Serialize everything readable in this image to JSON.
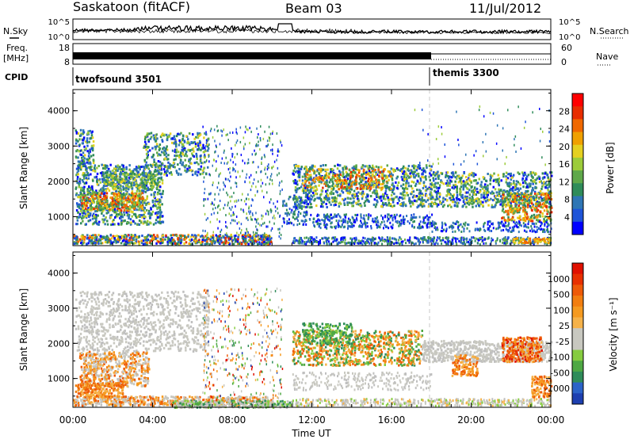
{
  "header": {
    "station": "Saskatoon (fitACF)",
    "beam": "Beam 03",
    "date": "11/Jul/2012"
  },
  "side_labels": {
    "nsky": "N.Sky",
    "freq_line1": "Freq.",
    "freq_line2": "[MHz]",
    "cpid": "CPID",
    "nsearch": "N.Search",
    "nave": "Nave"
  },
  "chart_data": [
    {
      "type": "line",
      "name": "noise-panel",
      "left_axis": {
        "label": "N.Sky",
        "ticks": [
          "10^5",
          "10^0"
        ]
      },
      "right_axis": {
        "label": "N.Search",
        "ticks": [
          "10^5",
          "10^0"
        ]
      },
      "x_range_hours": [
        0,
        24
      ],
      "note_visible": "two dense noise traces across the day"
    },
    {
      "type": "line",
      "name": "freq-nave-panel",
      "left_axis": {
        "label_lines": [
          "Freq.",
          "[MHz]"
        ],
        "ticks": [
          "18",
          "8"
        ]
      },
      "right_axis": {
        "label": "Nave",
        "ticks": [
          "60",
          "0"
        ]
      },
      "x_range_hours": [
        0,
        24
      ]
    },
    {
      "type": "table",
      "name": "cpid-strip",
      "label": "CPID",
      "programs": [
        {
          "name": "twofsound 3501",
          "start_hour": 0
        },
        {
          "name": "themis 3300",
          "start_hour": 18
        }
      ]
    },
    {
      "type": "heatmap",
      "name": "power-panel",
      "ylabel": "Slant Range [km]",
      "yticks": [
        "4000",
        "3000",
        "2000",
        "1000"
      ],
      "ylim": [
        180,
        4600
      ],
      "colorbar_label": "Power [dB]",
      "colorbar_ticks": [
        "28",
        "24",
        "20",
        "16",
        "12",
        "8",
        "4"
      ],
      "colors": [
        "#0000ff",
        "#1e54d8",
        "#2f76b5",
        "#2f8c5a",
        "#5fa84a",
        "#9ccc3a",
        "#e5d020",
        "#f0a000",
        "#f06800",
        "#e82d00",
        "#ff0000"
      ]
    },
    {
      "type": "heatmap",
      "name": "velocity-panel",
      "ylabel": "Slant Range [km]",
      "yticks": [
        "4000",
        "3000",
        "2000",
        "1000"
      ],
      "ylim": [
        180,
        4600
      ],
      "colorbar_label": "Velocity [m s⁻¹]",
      "colorbar_ticks": [
        "1000",
        "500",
        "100",
        "25",
        "-25",
        "-100",
        "-500",
        "-1000"
      ],
      "colors": [
        "#1d3fb0",
        "#2b63c8",
        "#2f8c5a",
        "#4ea844",
        "#86cc40",
        "#c8c8c0",
        "#c8c8c0",
        "#f5b24a",
        "#f59a20",
        "#f27e10",
        "#ee5a08",
        "#e83000",
        "#e01000"
      ],
      "xlabel": "Time UT",
      "xticks": [
        "00:00",
        "04:00",
        "08:00",
        "12:00",
        "16:00",
        "20:00",
        "00:00"
      ]
    }
  ]
}
